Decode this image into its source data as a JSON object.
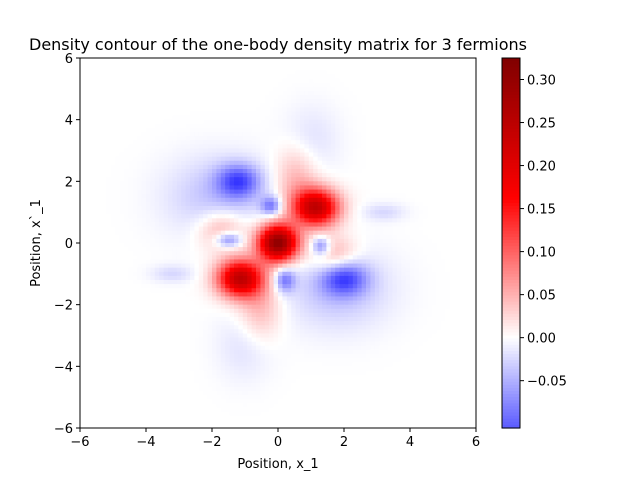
{
  "chart_data": {
    "type": "heatmap",
    "title": "Density contour of the one-body density matrix for 3 fermions",
    "xlabel": "Position, x_1",
    "ylabel": "Position, x`_1",
    "xlim": [
      -6,
      6
    ],
    "ylim": [
      -6,
      6
    ],
    "x_ticks": [
      -6,
      -4,
      -2,
      0,
      2,
      4,
      6
    ],
    "y_ticks": [
      -6,
      -4,
      -2,
      0,
      2,
      4,
      6
    ],
    "x_tick_labels": [
      "−6",
      "−4",
      "−2",
      "0",
      "2",
      "4",
      "6"
    ],
    "y_tick_labels": [
      "−6",
      "−4",
      "−2",
      "0",
      "2",
      "4",
      "6"
    ],
    "colormap": "seismic",
    "colorbar": {
      "range": [
        -0.105,
        0.325
      ],
      "ticks": [
        0.3,
        0.25,
        0.2,
        0.15,
        0.1,
        0.05,
        0.0,
        -0.05
      ],
      "tick_labels": [
        "0.30",
        "0.25",
        "0.20",
        "0.15",
        "0.10",
        "0.05",
        "0.00",
        "−0.05"
      ]
    },
    "features": [
      {
        "x": 0.0,
        "y": 0.0,
        "value": 0.31,
        "sx": 0.42,
        "sy": 0.42
      },
      {
        "x": 1.15,
        "y": 1.15,
        "value": 0.24,
        "sx": 0.48,
        "sy": 0.42
      },
      {
        "x": -1.15,
        "y": -1.15,
        "value": 0.24,
        "sx": 0.48,
        "sy": 0.42
      },
      {
        "x": 0.55,
        "y": 2.1,
        "value": 0.05,
        "sx": 0.45,
        "sy": 0.75
      },
      {
        "x": -0.55,
        "y": -2.1,
        "value": 0.05,
        "sx": 0.45,
        "sy": 0.75
      },
      {
        "x": 1.7,
        "y": -0.4,
        "value": 0.06,
        "sx": 0.5,
        "sy": 0.45
      },
      {
        "x": -1.7,
        "y": 0.4,
        "value": 0.06,
        "sx": 0.5,
        "sy": 0.45
      },
      {
        "x": -1.2,
        "y": 2.0,
        "value": -0.1,
        "sx": 0.45,
        "sy": 0.38
      },
      {
        "x": 2.0,
        "y": -1.15,
        "value": -0.1,
        "sx": 0.48,
        "sy": 0.38
      },
      {
        "x": -0.2,
        "y": 1.2,
        "value": -0.085,
        "sx": 0.22,
        "sy": 0.22
      },
      {
        "x": 0.2,
        "y": -1.2,
        "value": -0.085,
        "sx": 0.22,
        "sy": 0.28
      },
      {
        "x": -1.5,
        "y": 0.1,
        "value": -0.09,
        "sx": 0.28,
        "sy": 0.18
      },
      {
        "x": 1.3,
        "y": -0.1,
        "value": -0.085,
        "sx": 0.2,
        "sy": 0.22
      },
      {
        "x": 3.2,
        "y": 1.0,
        "value": -0.025,
        "sx": 0.45,
        "sy": 0.2
      },
      {
        "x": -3.2,
        "y": -1.0,
        "value": -0.025,
        "sx": 0.45,
        "sy": 0.2
      },
      {
        "x": -1.8,
        "y": 1.5,
        "value": -0.04,
        "sx": 1.1,
        "sy": 0.9
      },
      {
        "x": 1.8,
        "y": -1.5,
        "value": -0.04,
        "sx": 1.1,
        "sy": 0.9
      },
      {
        "x": 1.0,
        "y": 3.3,
        "value": -0.02,
        "sx": 0.6,
        "sy": 0.8
      },
      {
        "x": -1.0,
        "y": -3.3,
        "value": -0.02,
        "sx": 0.6,
        "sy": 0.8
      }
    ]
  }
}
